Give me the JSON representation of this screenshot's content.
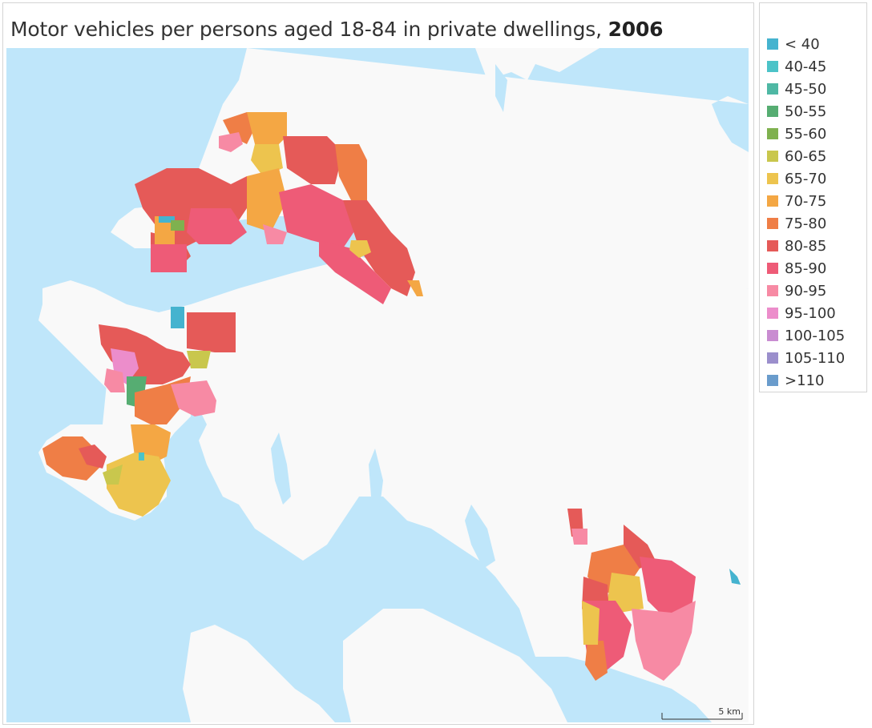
{
  "title": {
    "main": "Motor vehicles per persons aged 18-84 in private dwellings, ",
    "year": "2006"
  },
  "legend": {
    "items": [
      {
        "label": "< 40",
        "color": "#45b3cf"
      },
      {
        "label": "40-45",
        "color": "#4cc3c8"
      },
      {
        "label": "45-50",
        "color": "#4fb8a4"
      },
      {
        "label": "50-55",
        "color": "#56ad72"
      },
      {
        "label": "55-60",
        "color": "#7fb14f"
      },
      {
        "label": "60-65",
        "color": "#c9c74d"
      },
      {
        "label": "65-70",
        "color": "#edc44e"
      },
      {
        "label": "70-75",
        "color": "#f4a744"
      },
      {
        "label": "75-80",
        "color": "#ef7e46"
      },
      {
        "label": "80-85",
        "color": "#e55a58"
      },
      {
        "label": "85-90",
        "color": "#ee5b77"
      },
      {
        "label": "90-95",
        "color": "#f78aa4"
      },
      {
        "label": "95-100",
        "color": "#ec8dcb"
      },
      {
        "label": "100-105",
        "color": "#c98cd1"
      },
      {
        "label": "105-110",
        "color": "#9b8fcc"
      },
      {
        "label": ">110",
        "color": "#6a9ccc"
      }
    ]
  },
  "scale_bar": {
    "label": "5 km"
  },
  "colors": {
    "water": "#bfe6fa",
    "land": "#f9f9f9"
  }
}
